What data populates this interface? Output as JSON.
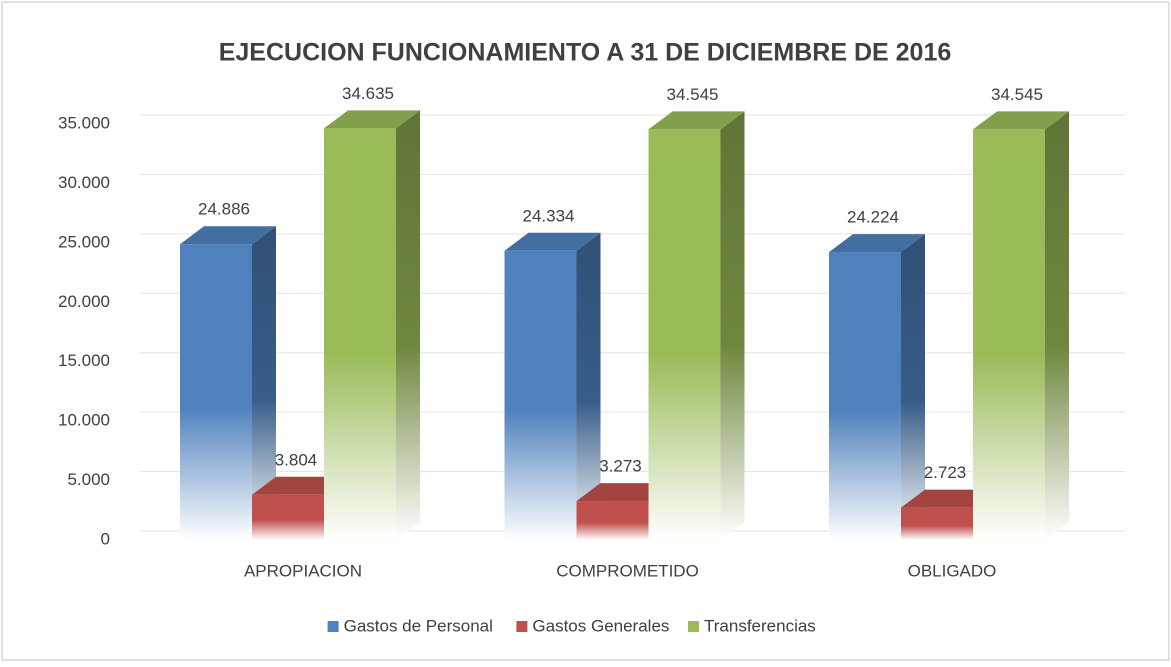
{
  "chart_data": {
    "type": "bar3d",
    "title": "EJECUCION FUNCIONAMIENTO  A 31 DE DICIEMBRE DE 2016",
    "categories": [
      "APROPIACION",
      "COMPROMETIDO",
      "OBLIGADO"
    ],
    "series": [
      {
        "name": "Gastos de Personal",
        "color": "#4f81bd",
        "values": [
          24886,
          24334,
          24224
        ],
        "value_labels": [
          "24.886",
          "24.334",
          "24.224"
        ]
      },
      {
        "name": "Gastos Generales",
        "color": "#c0504d",
        "values": [
          3804,
          3273,
          2723
        ],
        "value_labels": [
          "3.804",
          "3.273",
          "2.723"
        ]
      },
      {
        "name": "Transferencias",
        "color": "#9bbb59",
        "values": [
          34635,
          34545,
          34545
        ],
        "value_labels": [
          "34.635",
          "34.545",
          "34.545"
        ]
      }
    ],
    "ylim": [
      0,
      35000
    ],
    "yticks": [
      0,
      {
        "value": 5000,
        "label": "5.000"
      },
      {
        "value": 10000,
        "label": "10.000"
      },
      {
        "value": 15000,
        "label": "15.000"
      },
      {
        "value": 20000,
        "label": "20.000"
      },
      {
        "value": 25000,
        "label": "25.000"
      },
      {
        "value": 30000,
        "label": "30.000"
      },
      {
        "value": 35000,
        "label": "35.000"
      }
    ],
    "grid": true,
    "legend": "bottom"
  }
}
